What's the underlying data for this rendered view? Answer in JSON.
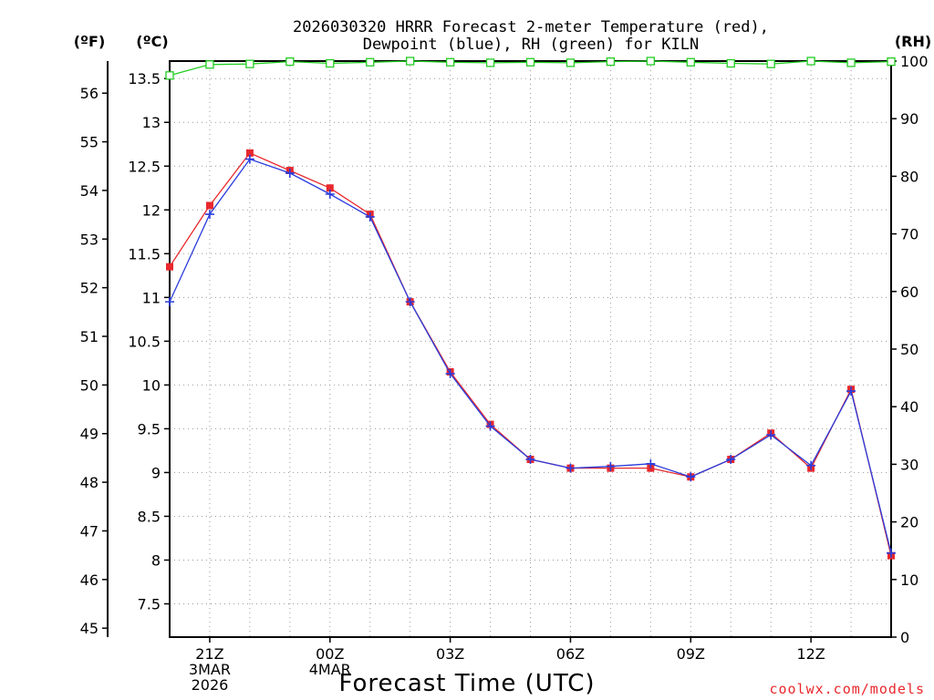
{
  "chart_data": {
    "type": "line",
    "title": [
      "2026030320 HRRR Forecast 2-meter Temperature (red),",
      "Dewpoint (blue), RH (green) for KILN"
    ],
    "xlabel": "Forecast Time (UTC)",
    "credit": "coolwx.com/models",
    "units": {
      "fahrenheit": "(ºF)",
      "celsius": "(ºC)",
      "rh": "(RH)"
    },
    "x": [
      0,
      1,
      2,
      3,
      4,
      5,
      6,
      7,
      8,
      9,
      10,
      11,
      12,
      13,
      14,
      15,
      16,
      17,
      18
    ],
    "xlim": [
      0,
      18
    ],
    "x_ticks": [
      {
        "x": 1,
        "label": [
          "21Z",
          "3MAR",
          "2026"
        ]
      },
      {
        "x": 4,
        "label": [
          "00Z",
          "4MAR"
        ]
      },
      {
        "x": 7,
        "label": [
          "03Z"
        ]
      },
      {
        "x": 10,
        "label": [
          "06Z"
        ]
      },
      {
        "x": 13,
        "label": [
          "09Z"
        ]
      },
      {
        "x": 16,
        "label": [
          "12Z"
        ]
      }
    ],
    "celsius_ticks": [
      "7.5",
      "8",
      "8.5",
      "9",
      "9.5",
      "10",
      "10.5",
      "11",
      "11.5",
      "12",
      "12.5",
      "13",
      "13.5"
    ],
    "fahrenheit_ticks": [
      "45",
      "46",
      "47",
      "48",
      "49",
      "50",
      "51",
      "52",
      "53",
      "54",
      "55",
      "56"
    ],
    "rh_ticks": [
      "0",
      "10",
      "20",
      "30",
      "40",
      "50",
      "60",
      "70",
      "80",
      "90",
      "100"
    ],
    "ylim_celsius": [
      7.12,
      13.7
    ],
    "ylim_rh": [
      0,
      100
    ],
    "grid": true,
    "series": [
      {
        "name": "Temperature",
        "color": "#e8282d",
        "marker": "square",
        "values": [
          11.35,
          12.05,
          12.65,
          12.45,
          12.25,
          11.95,
          10.95,
          10.15,
          9.55,
          9.15,
          9.05,
          9.05,
          9.05,
          8.95,
          9.15,
          9.45,
          9.05,
          9.95,
          8.05
        ]
      },
      {
        "name": "Dewpoint",
        "color": "#2a3cdc",
        "marker": "plus",
        "values": [
          10.95,
          11.95,
          12.58,
          12.42,
          12.18,
          11.92,
          10.95,
          10.13,
          9.53,
          9.15,
          9.05,
          9.07,
          9.1,
          8.95,
          9.15,
          9.43,
          9.08,
          9.93,
          8.08
        ]
      },
      {
        "name": "RH",
        "color": "#22cc22",
        "marker": "open-square",
        "axis": "rh",
        "values": [
          97.5,
          99.4,
          99.5,
          99.9,
          99.6,
          99.8,
          100,
          99.8,
          99.7,
          99.8,
          99.7,
          99.9,
          100,
          99.8,
          99.6,
          99.5,
          100,
          99.7,
          99.9
        ]
      }
    ]
  }
}
